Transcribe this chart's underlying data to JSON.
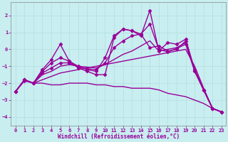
{
  "xlabel": "Windchill (Refroidissement éolien,°C)",
  "ylabel": "",
  "bg_color": "#c8eef0",
  "grid_color": "#b0dde0",
  "line_color": "#990099",
  "xlim": [
    -0.5,
    23.5
  ],
  "ylim": [
    -4.5,
    2.8
  ],
  "yticks": [
    -4,
    -3,
    -2,
    -1,
    0,
    1,
    2
  ],
  "xticks": [
    0,
    1,
    2,
    3,
    4,
    5,
    6,
    7,
    8,
    9,
    10,
    11,
    12,
    13,
    14,
    15,
    16,
    17,
    18,
    19,
    20,
    21,
    22,
    23
  ],
  "series": [
    {
      "x": [
        0,
        1,
        2,
        3,
        4,
        5,
        6,
        7,
        8,
        9,
        10,
        11,
        12,
        13,
        14,
        15,
        16,
        17,
        18,
        19,
        20,
        21,
        22,
        23
      ],
      "y": [
        -2.5,
        -1.8,
        -2.0,
        -1.8,
        -1.6,
        -1.4,
        -1.3,
        -1.2,
        -1.1,
        -1.0,
        -0.9,
        -0.8,
        -0.7,
        -0.6,
        -0.5,
        -0.4,
        -0.3,
        -0.2,
        -0.1,
        0.0,
        -1.0,
        -2.3,
        -3.5,
        -3.7
      ],
      "marker": null,
      "ms": 0,
      "lw": 1.0
    },
    {
      "x": [
        0,
        1,
        2,
        3,
        4,
        5,
        6,
        7,
        8,
        9,
        10,
        11,
        12,
        13,
        14,
        15,
        16,
        17,
        18,
        19,
        20,
        21,
        22,
        23
      ],
      "y": [
        -2.5,
        -1.85,
        -2.0,
        -1.5,
        -1.3,
        -1.0,
        -0.9,
        -1.0,
        -1.05,
        -1.1,
        -0.9,
        -0.6,
        -0.3,
        -0.1,
        0.2,
        0.5,
        -0.1,
        0.0,
        0.1,
        0.4,
        -1.2,
        -2.4,
        -3.5,
        -3.7
      ],
      "marker": null,
      "ms": 0,
      "lw": 1.0
    },
    {
      "comment": "spiky line - big spike at x=5 to 0.3, x=10-14 up to ~0.7-1.2, x=15 up to 2.3, x=19 ~0.6",
      "x": [
        0,
        1,
        2,
        3,
        4,
        5,
        6,
        7,
        8,
        9,
        10,
        11,
        12,
        13,
        14,
        15,
        16,
        17,
        18,
        19,
        20,
        21,
        22,
        23
      ],
      "y": [
        -2.5,
        -1.8,
        -2.0,
        -1.2,
        -0.6,
        0.3,
        -0.7,
        -1.1,
        -1.3,
        -1.5,
        -1.5,
        0.7,
        1.2,
        1.1,
        0.8,
        2.3,
        -0.1,
        0.4,
        0.3,
        0.6,
        -1.2,
        -2.4,
        -3.5,
        -3.7
      ],
      "marker": "D",
      "ms": 2.5,
      "lw": 1.0
    },
    {
      "x": [
        0,
        1,
        2,
        3,
        4,
        5,
        6,
        7,
        8,
        9,
        10,
        11,
        12,
        13,
        14,
        15,
        16,
        17,
        18,
        19,
        20,
        21,
        22,
        23
      ],
      "y": [
        -2.5,
        -1.8,
        -2.0,
        -1.3,
        -0.8,
        -0.5,
        -0.7,
        -1.0,
        -1.2,
        -1.3,
        -0.5,
        0.8,
        1.2,
        1.1,
        0.9,
        0.1,
        0.2,
        -0.1,
        0.0,
        0.5,
        -1.3,
        -2.4,
        -3.5,
        -3.7
      ],
      "marker": "D",
      "ms": 2.5,
      "lw": 1.0
    },
    {
      "x": [
        0,
        1,
        2,
        3,
        4,
        5,
        6,
        7,
        8,
        9,
        10,
        11,
        12,
        13,
        14,
        15,
        16,
        17,
        18,
        19,
        20,
        21,
        22,
        23
      ],
      "y": [
        -2.5,
        -1.85,
        -2.0,
        -1.4,
        -1.1,
        -0.8,
        -0.8,
        -1.05,
        -1.15,
        -1.2,
        -0.8,
        0.1,
        0.5,
        0.8,
        0.9,
        1.5,
        0.0,
        -0.15,
        0.05,
        0.3,
        -1.3,
        -2.4,
        -3.5,
        -3.7
      ],
      "marker": "D",
      "ms": 2.5,
      "lw": 1.0
    },
    {
      "x": [
        0,
        1,
        2,
        3,
        4,
        5,
        6,
        7,
        8,
        9,
        10,
        11,
        12,
        13,
        14,
        15,
        16,
        17,
        18,
        19,
        20,
        21,
        22,
        23
      ],
      "y": [
        -2.5,
        -1.8,
        -2.0,
        -2.0,
        -2.1,
        -2.1,
        -2.0,
        -2.0,
        -2.0,
        -2.1,
        -2.1,
        -2.2,
        -2.2,
        -2.3,
        -2.3,
        -2.3,
        -2.4,
        -2.6,
        -2.7,
        -2.8,
        -3.0,
        -3.2,
        -3.5,
        -3.7
      ],
      "marker": null,
      "ms": 0,
      "lw": 1.0
    }
  ]
}
